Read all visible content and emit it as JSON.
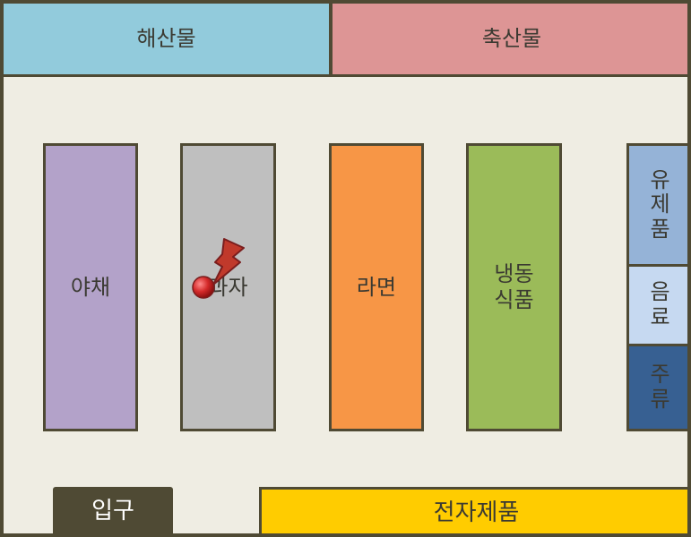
{
  "zones": {
    "seafood": {
      "label": "해산물",
      "color": "#92cbdc"
    },
    "meat": {
      "label": "축산물",
      "color": "#dd9595"
    },
    "vegetables": {
      "label": "야채",
      "color": "#b3a2c9"
    },
    "snacks": {
      "label": "과자",
      "color": "#bfbfbf"
    },
    "ramen": {
      "label": "라면",
      "color": "#f79646"
    },
    "frozen": {
      "label": "냉동\n식품",
      "color": "#9bbb59"
    },
    "dairy": {
      "label": "유\n제\n품",
      "color": "#95b3d7"
    },
    "drinks": {
      "label": "음\n료",
      "color": "#c6d9f1"
    },
    "liquor": {
      "label": "주\n류",
      "color": "#376092"
    },
    "electronics": {
      "label": "전자제품",
      "color": "#ffcc00"
    }
  },
  "entrance": {
    "label": "입구"
  },
  "marker": {
    "icon": "map-pin-icon",
    "zone": "snacks"
  }
}
